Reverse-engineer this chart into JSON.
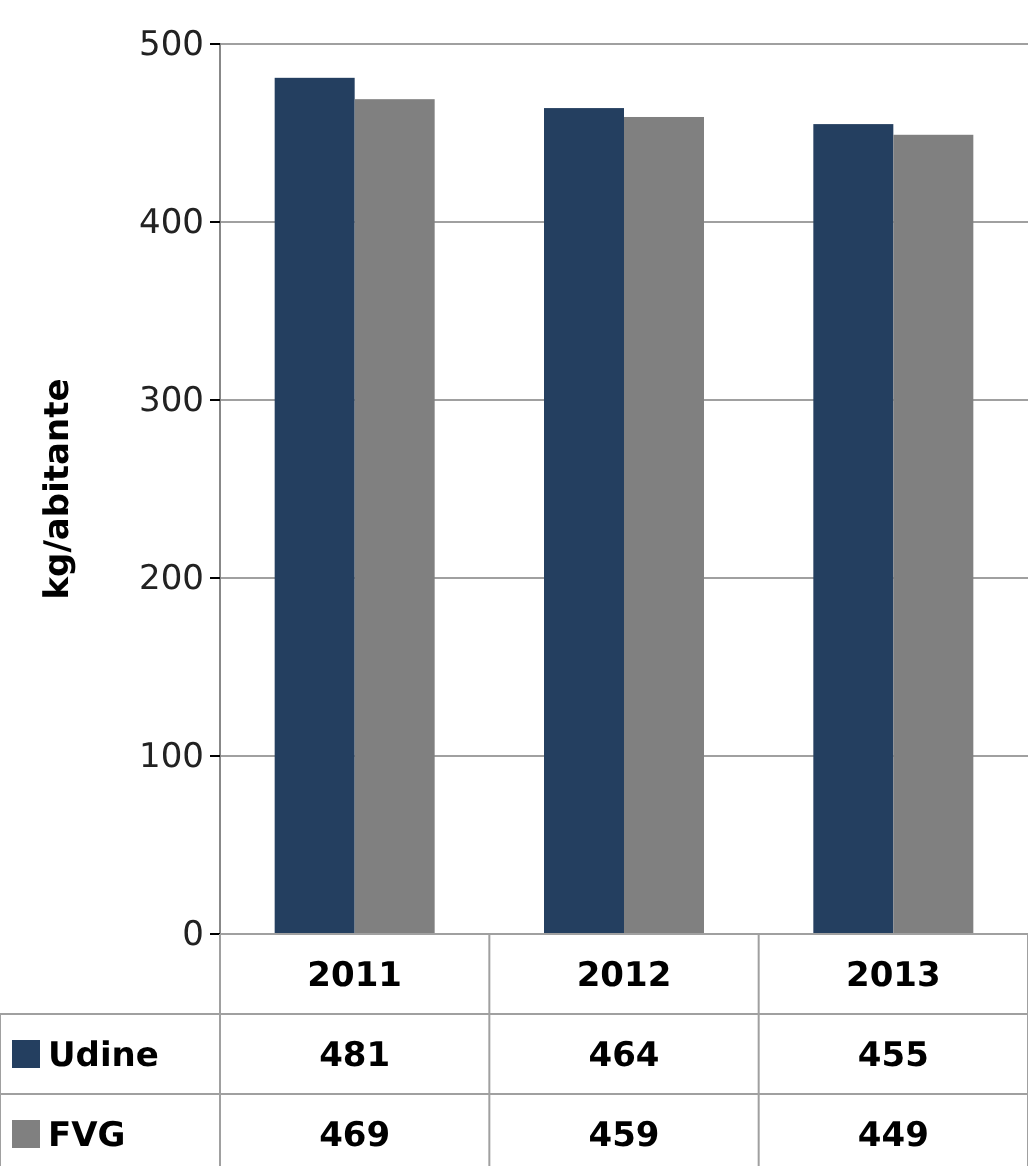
{
  "chart_data": {
    "type": "bar",
    "ylabel": "kg/abitante",
    "categories": [
      "2011",
      "2012",
      "2013"
    ],
    "series": [
      {
        "name": "Udine",
        "color": "#243f60",
        "values": [
          481,
          464,
          455
        ]
      },
      {
        "name": "FVG",
        "color": "#808080",
        "values": [
          469,
          459,
          449
        ]
      }
    ],
    "ylim": [
      0,
      500
    ],
    "yticks": [
      0,
      100,
      200,
      300,
      400,
      500
    ],
    "grid": "y",
    "legend": "bottom",
    "data_labels": true
  }
}
